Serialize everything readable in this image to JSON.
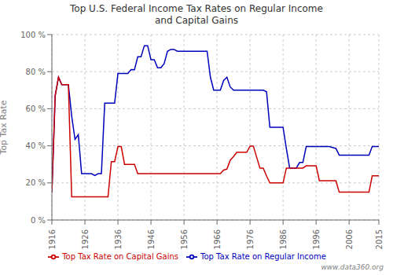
{
  "chart_data": {
    "type": "line",
    "title": "Top U.S. Federal Income Tax Rates on Regular Income\nand Capital Gains",
    "y_label": "Top Tax Rate",
    "annotations": [
      "www.data360.org"
    ],
    "x": [
      1916,
      1917,
      1918,
      1919,
      1920,
      1921,
      1922,
      1923,
      1924,
      1925,
      1926,
      1927,
      1928,
      1929,
      1930,
      1931,
      1932,
      1933,
      1934,
      1935,
      1936,
      1937,
      1938,
      1939,
      1940,
      1941,
      1942,
      1943,
      1944,
      1945,
      1946,
      1947,
      1948,
      1949,
      1950,
      1951,
      1952,
      1953,
      1954,
      1955,
      1956,
      1957,
      1958,
      1959,
      1960,
      1961,
      1962,
      1963,
      1964,
      1965,
      1966,
      1967,
      1968,
      1969,
      1970,
      1971,
      1972,
      1973,
      1974,
      1975,
      1976,
      1977,
      1978,
      1979,
      1980,
      1981,
      1982,
      1983,
      1984,
      1985,
      1986,
      1987,
      1988,
      1989,
      1990,
      1991,
      1992,
      1993,
      1994,
      1995,
      1996,
      1997,
      1998,
      1999,
      2000,
      2001,
      2002,
      2003,
      2004,
      2005,
      2006,
      2007,
      2008,
      2009,
      2010,
      2011,
      2012,
      2013,
      2014,
      2015
    ],
    "series": [
      {
        "name": "Top Tax Rate on Regular Income",
        "color": "#0000bb",
        "values": [
          15,
          67,
          77,
          73,
          73,
          73,
          56,
          43.5,
          46,
          25,
          25,
          25,
          25,
          24,
          25,
          25,
          63,
          63,
          63,
          63,
          79,
          79,
          79,
          79,
          81.1,
          81,
          88,
          88,
          94,
          94,
          86.45,
          86.45,
          82.13,
          82.13,
          84.36,
          91,
          92,
          92,
          91,
          91,
          91,
          91,
          91,
          91,
          91,
          91,
          91,
          91,
          77,
          70,
          70,
          70,
          75.25,
          77,
          71.75,
          70,
          70,
          70,
          70,
          70,
          70,
          70,
          70,
          70,
          70,
          69.13,
          50,
          50,
          50,
          50,
          50,
          38.5,
          28,
          28,
          28,
          31,
          31,
          39.6,
          39.6,
          39.6,
          39.6,
          39.6,
          39.6,
          39.6,
          39.6,
          39.1,
          38.6,
          35,
          35,
          35,
          35,
          35,
          35,
          35,
          35,
          35,
          35,
          39.6,
          39.6,
          39.6
        ]
      },
      {
        "name": "Top Tax Rate on Capital Gains",
        "color": "#cc0000",
        "values": [
          15,
          67,
          77,
          73,
          73,
          73,
          12.5,
          12.5,
          12.5,
          12.5,
          12.5,
          12.5,
          12.5,
          12.5,
          12.5,
          12.5,
          12.5,
          12.5,
          31.5,
          31.5,
          39.6,
          39.6,
          30,
          30,
          30,
          30,
          25,
          25,
          25,
          25,
          25,
          25,
          25,
          25,
          25,
          25,
          25,
          25,
          25,
          25,
          25,
          25,
          25,
          25,
          25,
          25,
          25,
          25,
          25,
          25,
          25,
          25,
          26.9,
          27.5,
          32.21,
          34.25,
          36.5,
          36.5,
          36.5,
          36.5,
          39.875,
          39.875,
          33.85,
          28,
          28,
          23.7,
          20,
          20,
          20,
          20,
          20,
          28,
          28,
          28,
          28,
          28,
          28,
          29.19,
          29.19,
          29.19,
          29.19,
          21.19,
          21.19,
          21.19,
          21.19,
          21.19,
          21.19,
          15,
          15,
          15,
          15,
          15,
          15,
          15,
          15,
          15,
          15,
          23.8,
          23.8,
          23.8
        ]
      }
    ],
    "xlim": [
      1916,
      2015
    ],
    "xticks": [
      1916,
      1926,
      1936,
      1946,
      1956,
      1966,
      1976,
      1986,
      1996,
      2006,
      2015
    ],
    "ylim": [
      0,
      100
    ],
    "yticks": [
      {
        "value": 0,
        "label": "0 %"
      },
      {
        "value": 20,
        "label": "20 %"
      },
      {
        "value": 40,
        "label": "40 %"
      },
      {
        "value": 60,
        "label": "60 %"
      },
      {
        "value": 80,
        "label": "80 %"
      },
      {
        "value": 100,
        "label": "100 %"
      }
    ],
    "grid": true,
    "legend": "bottom"
  }
}
